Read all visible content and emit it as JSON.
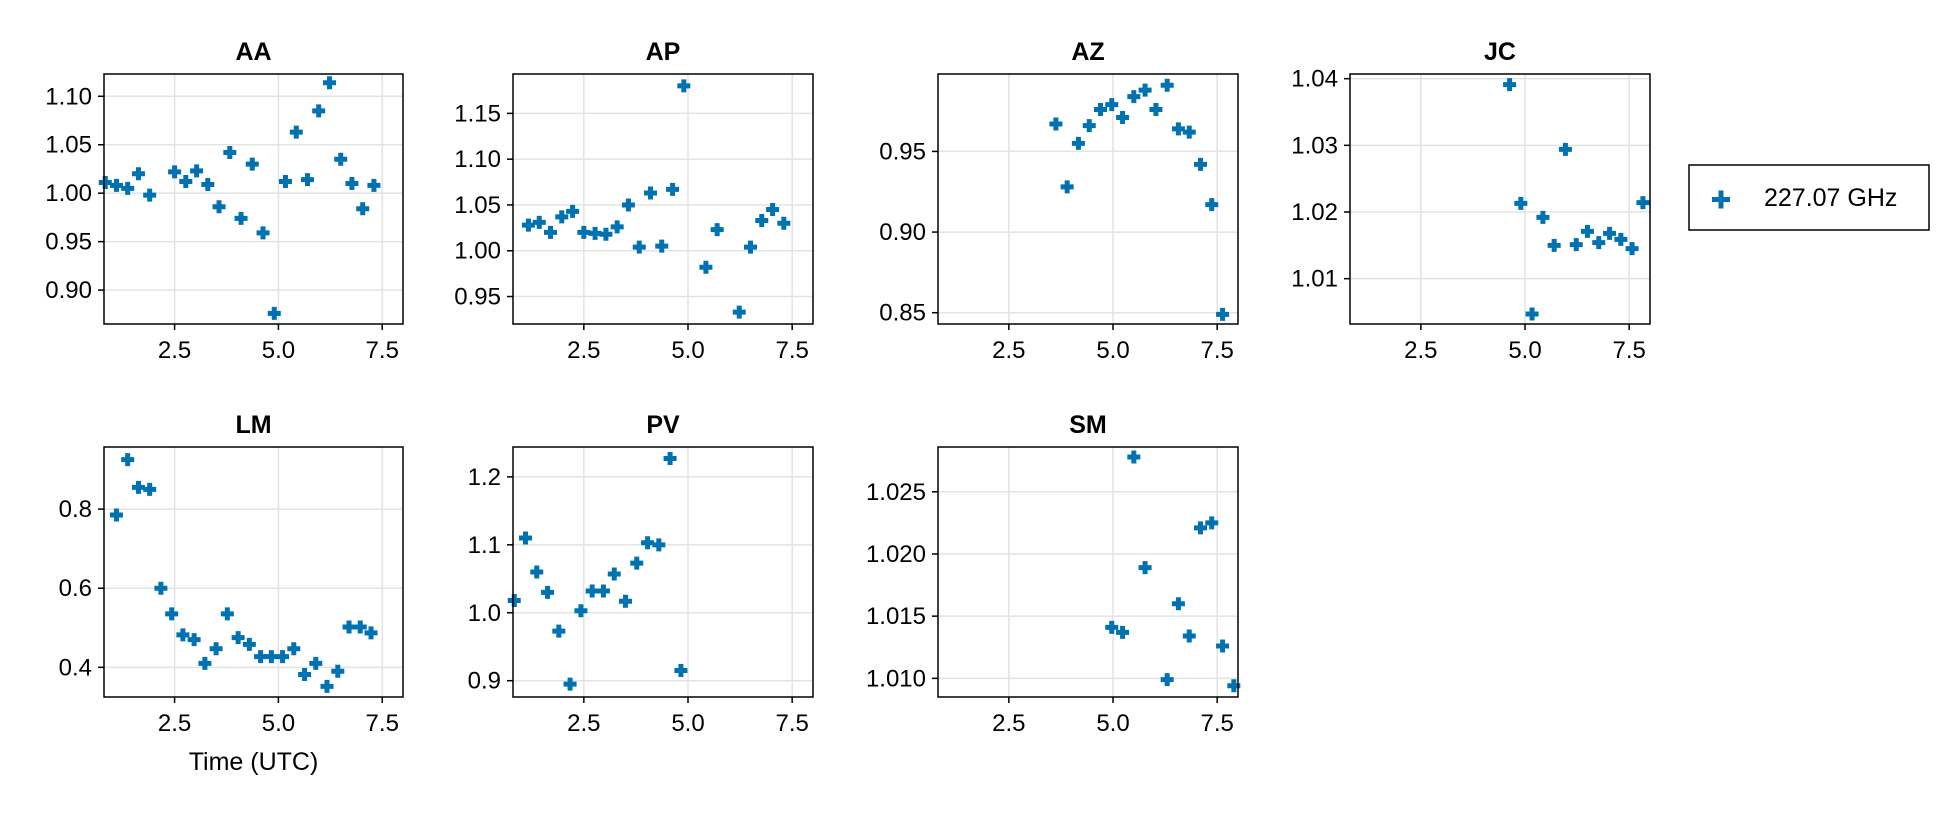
{
  "chart_data": [
    {
      "type": "scatter",
      "title": "AA",
      "xlabel": "",
      "xlim": [
        0.8,
        8.0
      ],
      "ylim": [
        0.865,
        1.123
      ],
      "xticks": [
        "2.5",
        "5.0",
        "7.5"
      ],
      "yticks": [
        "0.90",
        "0.95",
        "1.00",
        "1.05",
        "1.10"
      ],
      "grid": true,
      "series": [
        {
          "name": "227.07 GHz",
          "points": [
            [
              0.83,
              1.011
            ],
            [
              1.1,
              1.008
            ],
            [
              1.37,
              1.005
            ],
            [
              1.63,
              1.02
            ],
            [
              1.9,
              0.998
            ],
            [
              2.5,
              1.022
            ],
            [
              2.77,
              1.012
            ],
            [
              3.03,
              1.023
            ],
            [
              3.3,
              1.009
            ],
            [
              3.57,
              0.986
            ],
            [
              3.83,
              1.042
            ],
            [
              4.1,
              0.974
            ],
            [
              4.37,
              1.03
            ],
            [
              4.63,
              0.959
            ],
            [
              4.9,
              0.876
            ],
            [
              5.17,
              1.012
            ],
            [
              5.43,
              1.063
            ],
            [
              5.7,
              1.014
            ],
            [
              5.97,
              1.085
            ],
            [
              6.23,
              1.114
            ],
            [
              6.5,
              1.035
            ],
            [
              6.77,
              1.01
            ],
            [
              7.03,
              0.984
            ],
            [
              7.3,
              1.008
            ]
          ]
        }
      ]
    },
    {
      "type": "scatter",
      "title": "AP",
      "xlabel": "",
      "xlim": [
        0.8,
        8.0
      ],
      "ylim": [
        0.92,
        1.193
      ],
      "xticks": [
        "2.5",
        "5.0",
        "7.5"
      ],
      "yticks": [
        "0.95",
        "1.00",
        "1.05",
        "1.10",
        "1.15"
      ],
      "grid": true,
      "series": [
        {
          "name": "227.07 GHz",
          "points": [
            [
              1.17,
              1.028
            ],
            [
              1.43,
              1.031
            ],
            [
              1.7,
              1.02
            ],
            [
              1.97,
              1.037
            ],
            [
              2.23,
              1.043
            ],
            [
              2.5,
              1.02
            ],
            [
              2.77,
              1.019
            ],
            [
              3.03,
              1.018
            ],
            [
              3.3,
              1.026
            ],
            [
              3.57,
              1.05
            ],
            [
              3.83,
              1.004
            ],
            [
              4.1,
              1.063
            ],
            [
              4.37,
              1.005
            ],
            [
              4.63,
              1.067
            ],
            [
              4.9,
              1.18
            ],
            [
              5.43,
              0.982
            ],
            [
              5.7,
              1.023
            ],
            [
              6.23,
              0.933
            ],
            [
              6.5,
              1.004
            ],
            [
              6.77,
              1.033
            ],
            [
              7.03,
              1.045
            ],
            [
              7.3,
              1.03
            ]
          ]
        }
      ]
    },
    {
      "type": "scatter",
      "title": "AZ",
      "xlabel": "",
      "xlim": [
        0.8,
        8.0
      ],
      "ylim": [
        0.843,
        0.998
      ],
      "xticks": [
        "2.5",
        "5.0",
        "7.5"
      ],
      "yticks": [
        "0.85",
        "0.90",
        "0.95"
      ],
      "grid": true,
      "series": [
        {
          "name": "227.07 GHz",
          "points": [
            [
              3.63,
              0.967
            ],
            [
              3.9,
              0.928
            ],
            [
              4.17,
              0.955
            ],
            [
              4.43,
              0.966
            ],
            [
              4.7,
              0.976
            ],
            [
              4.97,
              0.979
            ],
            [
              5.23,
              0.971
            ],
            [
              5.5,
              0.984
            ],
            [
              5.77,
              0.988
            ],
            [
              6.03,
              0.976
            ],
            [
              6.3,
              0.991
            ],
            [
              6.57,
              0.964
            ],
            [
              6.83,
              0.962
            ],
            [
              7.1,
              0.942
            ],
            [
              7.37,
              0.917
            ],
            [
              7.63,
              0.849
            ]
          ]
        }
      ]
    },
    {
      "type": "scatter",
      "title": "JC",
      "xlabel": "",
      "xlim": [
        0.8,
        8.0
      ],
      "ylim": [
        1.0032,
        1.0407
      ],
      "xticks": [
        "2.5",
        "5.0",
        "7.5"
      ],
      "yticks": [
        "1.01",
        "1.02",
        "1.03",
        "1.04"
      ],
      "grid": true,
      "series": [
        {
          "name": "227.07 GHz",
          "points": [
            [
              4.63,
              1.0391
            ],
            [
              4.9,
              1.0213
            ],
            [
              5.17,
              1.0047
            ],
            [
              5.43,
              1.0192
            ],
            [
              5.7,
              1.015
            ],
            [
              5.97,
              1.0294
            ],
            [
              6.23,
              1.0151
            ],
            [
              6.5,
              1.0171
            ],
            [
              6.77,
              1.0154
            ],
            [
              7.03,
              1.0168
            ],
            [
              7.3,
              1.0159
            ],
            [
              7.57,
              1.0145
            ],
            [
              7.83,
              1.0214
            ]
          ]
        }
      ]
    },
    {
      "type": "scatter",
      "title": "LM",
      "xlabel": "Time (UTC)",
      "xlim": [
        0.8,
        8.0
      ],
      "ylim": [
        0.325,
        0.957
      ],
      "xticks": [
        "2.5",
        "5.0",
        "7.5"
      ],
      "yticks": [
        "0.4",
        "0.6",
        "0.8"
      ],
      "grid": true,
      "series": [
        {
          "name": "227.07 GHz",
          "points": [
            [
              1.1,
              0.785
            ],
            [
              1.37,
              0.925
            ],
            [
              1.63,
              0.855
            ],
            [
              1.9,
              0.85
            ],
            [
              2.17,
              0.6
            ],
            [
              2.43,
              0.535
            ],
            [
              2.7,
              0.482
            ],
            [
              2.97,
              0.47
            ],
            [
              3.23,
              0.41
            ],
            [
              3.5,
              0.447
            ],
            [
              3.77,
              0.535
            ],
            [
              4.03,
              0.475
            ],
            [
              4.3,
              0.458
            ],
            [
              4.57,
              0.427
            ],
            [
              4.83,
              0.427
            ],
            [
              5.1,
              0.427
            ],
            [
              5.37,
              0.447
            ],
            [
              5.63,
              0.382
            ],
            [
              5.9,
              0.41
            ],
            [
              6.17,
              0.352
            ],
            [
              6.43,
              0.39
            ],
            [
              6.7,
              0.502
            ],
            [
              6.97,
              0.502
            ],
            [
              7.23,
              0.487
            ]
          ]
        }
      ]
    },
    {
      "type": "scatter",
      "title": "PV",
      "xlabel": "",
      "xlim": [
        0.8,
        8.0
      ],
      "ylim": [
        0.876,
        1.244
      ],
      "xticks": [
        "2.5",
        "5.0",
        "7.5"
      ],
      "yticks": [
        "0.9",
        "1.0",
        "1.1",
        "1.2"
      ],
      "grid": true,
      "series": [
        {
          "name": "227.07 GHz",
          "points": [
            [
              0.83,
              1.018
            ],
            [
              1.1,
              1.11
            ],
            [
              1.37,
              1.06
            ],
            [
              1.63,
              1.03
            ],
            [
              1.9,
              0.973
            ],
            [
              2.17,
              0.895
            ],
            [
              2.43,
              1.003
            ],
            [
              2.7,
              1.032
            ],
            [
              2.97,
              1.032
            ],
            [
              3.23,
              1.057
            ],
            [
              3.5,
              1.017
            ],
            [
              3.77,
              1.073
            ],
            [
              4.03,
              1.103
            ],
            [
              4.3,
              1.1
            ],
            [
              4.57,
              1.227
            ],
            [
              4.83,
              0.915
            ]
          ]
        }
      ]
    },
    {
      "type": "scatter",
      "title": "SM",
      "xlabel": "",
      "xlim": [
        0.8,
        8.0
      ],
      "ylim": [
        1.0085,
        1.0286
      ],
      "xticks": [
        "2.5",
        "5.0",
        "7.5"
      ],
      "yticks": [
        "1.010",
        "1.015",
        "1.020",
        "1.025"
      ],
      "grid": true,
      "series": [
        {
          "name": "227.07 GHz",
          "points": [
            [
              4.97,
              1.0141
            ],
            [
              5.23,
              1.0137
            ],
            [
              5.5,
              1.0278
            ],
            [
              5.77,
              1.0189
            ],
            [
              6.3,
              1.0099
            ],
            [
              6.57,
              1.016
            ],
            [
              6.83,
              1.0134
            ],
            [
              7.1,
              1.0221
            ],
            [
              7.37,
              1.0225
            ],
            [
              7.63,
              1.0126
            ],
            [
              7.9,
              1.0094
            ]
          ]
        }
      ]
    }
  ],
  "legend": {
    "label": "227.07 GHz",
    "placement": "right",
    "marker_color": "#0072b2"
  }
}
